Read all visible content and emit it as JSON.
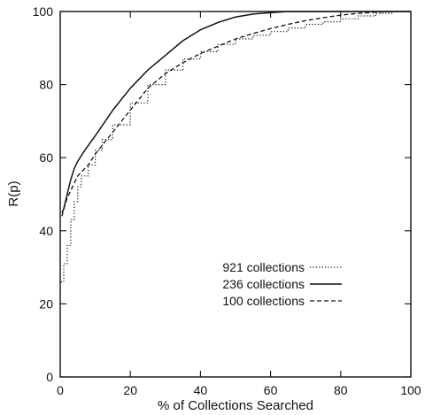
{
  "chart_data": {
    "type": "line",
    "title": "",
    "xlabel": "% of Collections Searched",
    "ylabel": "R(p)",
    "xlim": [
      0,
      100
    ],
    "ylim": [
      0,
      100
    ],
    "xticks": [
      "0",
      "20",
      "40",
      "60",
      "80",
      "100"
    ],
    "yticks": [
      "0",
      "20",
      "40",
      "60",
      "80",
      "100"
    ],
    "grid": false,
    "legend_position": "lower-right",
    "series": [
      {
        "name": "921 collections",
        "style": "dotted",
        "x": [
          0.2,
          1,
          2,
          3,
          4,
          5,
          6,
          8,
          10,
          12,
          15,
          20,
          25,
          30,
          35,
          40,
          45,
          50,
          55,
          60,
          65,
          70,
          75,
          80,
          85,
          90,
          95,
          100
        ],
        "y": [
          26,
          31,
          36,
          43,
          48,
          52,
          55,
          58,
          62,
          65,
          69,
          75,
          80,
          84,
          87,
          89,
          91,
          92.5,
          93.5,
          94.5,
          95.5,
          96.5,
          97.2,
          98,
          98.8,
          99.5,
          100,
          100
        ]
      },
      {
        "name": "236 collections",
        "style": "solid",
        "x": [
          0.5,
          1,
          2,
          3,
          4,
          5,
          7,
          10,
          15,
          20,
          25,
          30,
          35,
          40,
          45,
          50,
          55,
          60,
          65,
          70,
          80,
          90,
          100
        ],
        "y": [
          45,
          46,
          50,
          54,
          57,
          59,
          62,
          66,
          73,
          79,
          84,
          88,
          92,
          95,
          97,
          98.5,
          99.3,
          99.7,
          100,
          100,
          100,
          100,
          100
        ]
      },
      {
        "name": "100 collections",
        "style": "dashed",
        "x": [
          0.5,
          1,
          2,
          3,
          4,
          5,
          6,
          8,
          10,
          15,
          20,
          25,
          30,
          35,
          40,
          45,
          50,
          55,
          60,
          65,
          70,
          75,
          80,
          85,
          90,
          95,
          100
        ],
        "y": [
          44,
          46,
          49,
          51,
          53,
          55,
          56,
          58,
          61,
          67,
          73,
          79,
          83,
          86,
          88.5,
          90.5,
          92.5,
          94,
          95.3,
          96.5,
          97.5,
          98.3,
          99,
          99.5,
          99.8,
          100,
          100
        ]
      }
    ]
  }
}
